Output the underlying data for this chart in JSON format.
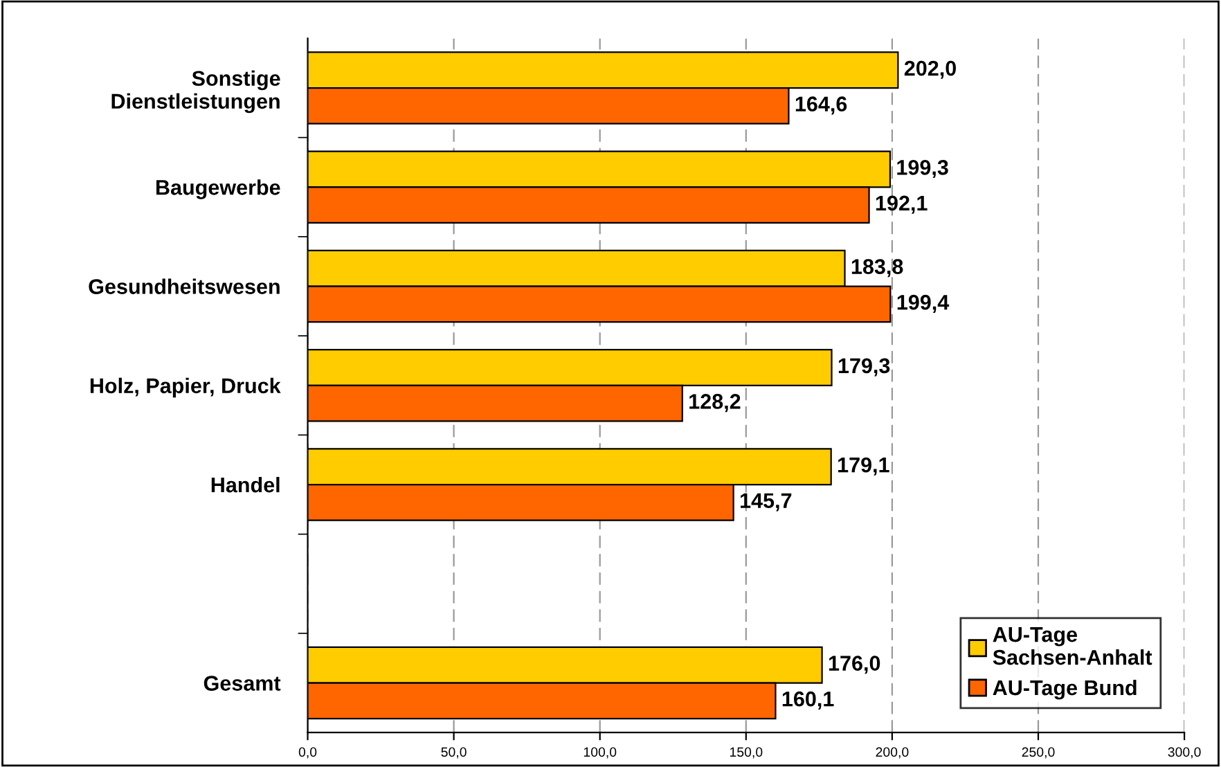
{
  "chart_data": {
    "type": "bar",
    "orientation": "horizontal",
    "categories": [
      "Sonstige\nDienstleistungen",
      "Baugewerbe",
      "Gesundheitswesen",
      "Holz, Papier, Druck",
      "Handel",
      null,
      "Gesamt"
    ],
    "series": [
      {
        "name": "AU-Tage\nSachsen-Anhalt",
        "color": "#ffcc00",
        "values": [
          202.0,
          199.3,
          183.8,
          179.3,
          179.1,
          null,
          176.0
        ],
        "value_labels": [
          "202,0",
          "199,3",
          "183,8",
          "179,3",
          "179,1",
          null,
          "176,0"
        ]
      },
      {
        "name": "AU-Tage Bund",
        "color": "#ff6600",
        "values": [
          164.6,
          192.1,
          199.4,
          128.2,
          145.7,
          null,
          160.1
        ],
        "value_labels": [
          "164,6",
          "192,1",
          "199,4",
          "128,2",
          "145,7",
          null,
          "160,1"
        ]
      }
    ],
    "xlim": [
      0,
      300
    ],
    "xticks": [
      {
        "value": 0,
        "label": "0,0"
      },
      {
        "value": 50,
        "label": "50,0"
      },
      {
        "value": 100,
        "label": "100,0"
      },
      {
        "value": 150,
        "label": "150,0"
      },
      {
        "value": 200,
        "label": "200,0"
      },
      {
        "value": 250,
        "label": "250,0"
      },
      {
        "value": 300,
        "label": "300,0"
      }
    ],
    "grid": "x",
    "legend": "bottom right"
  }
}
